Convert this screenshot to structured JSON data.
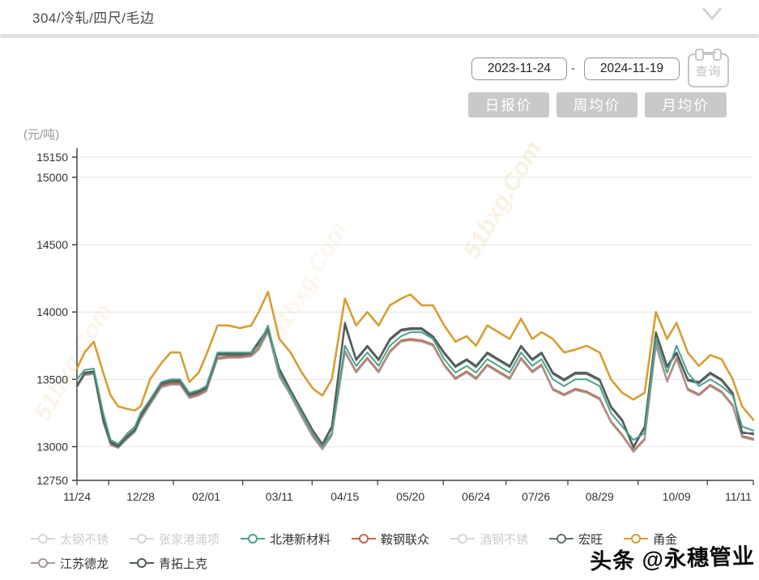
{
  "header": {
    "title": "304/冷轧/四尺/毛边"
  },
  "controls": {
    "date_start": "2023-11-24",
    "date_separator": "-",
    "date_end": "2024-11-19",
    "query_label": "查询",
    "buttons": [
      {
        "label": "日报价"
      },
      {
        "label": "周均价"
      },
      {
        "label": "月均价"
      }
    ]
  },
  "watermarks": {
    "toutiao": "头条 @永穗管业",
    "site": "51bxg.Com"
  },
  "chart_data": {
    "type": "line",
    "unit_label": "(元/吨)",
    "ylim": [
      12750,
      15150
    ],
    "y_ticks": [
      12750,
      13000,
      13500,
      14000,
      14500,
      15000,
      15150
    ],
    "x_range": [
      0,
      361
    ],
    "x_ticks": [
      {
        "label": "11/24",
        "day": 0
      },
      {
        "label": "12/28",
        "day": 34
      },
      {
        "label": "02/01",
        "day": 69
      },
      {
        "label": "03/11",
        "day": 108
      },
      {
        "label": "04/15",
        "day": 143
      },
      {
        "label": "05/20",
        "day": 178
      },
      {
        "label": "06/24",
        "day": 213
      },
      {
        "label": "07/26",
        "day": 245
      },
      {
        "label": "08/29",
        "day": 279
      },
      {
        "label": "10/09",
        "day": 320
      },
      {
        "label": "11/11",
        "day": 353
      }
    ],
    "grid": true,
    "legend_position": "bottom",
    "x_days": [
      0,
      4,
      9,
      14,
      18,
      22,
      27,
      31,
      34,
      39,
      45,
      50,
      55,
      60,
      65,
      69,
      75,
      81,
      87,
      93,
      97,
      102,
      108,
      114,
      120,
      126,
      131,
      136,
      143,
      149,
      155,
      161,
      167,
      173,
      178,
      184,
      190,
      196,
      202,
      208,
      213,
      219,
      225,
      231,
      237,
      243,
      248,
      254,
      260,
      266,
      272,
      279,
      285,
      291,
      297,
      303,
      309,
      315,
      320,
      326,
      332,
      338,
      344,
      350,
      355,
      361
    ],
    "series": [
      {
        "name": "太钢不锈",
        "color": "#d6d6d6",
        "active": false
      },
      {
        "name": "张家港浦项",
        "color": "#d6d6d6",
        "active": false
      },
      {
        "name": "北港新材料",
        "color": "#4ba18d",
        "active": true,
        "width": 2,
        "values": [
          13500,
          13570,
          13580,
          13250,
          13050,
          13020,
          13100,
          13150,
          13250,
          13350,
          13480,
          13500,
          13500,
          13400,
          13420,
          13450,
          13700,
          13700,
          13700,
          13700,
          13750,
          13900,
          13550,
          13400,
          13250,
          13100,
          13000,
          13100,
          13750,
          13600,
          13700,
          13600,
          13750,
          13820,
          13850,
          13850,
          13800,
          13650,
          13550,
          13600,
          13550,
          13650,
          13600,
          13550,
          13700,
          13600,
          13650,
          13500,
          13450,
          13500,
          13500,
          13450,
          13250,
          13150,
          13050,
          13100,
          13800,
          13550,
          13750,
          13550,
          13450,
          13500,
          13450,
          13380,
          13150,
          13120
        ]
      },
      {
        "name": "鞍钢联众",
        "color": "#c2674a",
        "active": true,
        "width": 2,
        "values": [
          13450,
          13540,
          13550,
          13190,
          13020,
          13000,
          13070,
          13120,
          13210,
          13320,
          13450,
          13470,
          13470,
          13370,
          13390,
          13420,
          13660,
          13670,
          13670,
          13680,
          13730,
          13860,
          13530,
          13390,
          13230,
          13080,
          12990,
          13090,
          13710,
          13560,
          13660,
          13560,
          13710,
          13790,
          13800,
          13790,
          13760,
          13610,
          13510,
          13560,
          13510,
          13610,
          13560,
          13510,
          13660,
          13560,
          13610,
          13430,
          13390,
          13430,
          13410,
          13360,
          13190,
          13090,
          12970,
          13060,
          13760,
          13490,
          13660,
          13430,
          13390,
          13460,
          13410,
          13310,
          13080,
          13060
        ]
      },
      {
        "name": "酒钢不锈",
        "color": "#d6d6d6",
        "active": false
      },
      {
        "name": "宏旺",
        "color": "#64716b",
        "active": true,
        "width": 2,
        "values": [
          13460,
          13540,
          13550,
          13210,
          13040,
          13010,
          13070,
          13120,
          13220,
          13330,
          13460,
          13480,
          13480,
          13380,
          13400,
          13430,
          13680,
          13680,
          13680,
          13690,
          13760,
          13870,
          13570,
          13410,
          13260,
          13110,
          13010,
          13140,
          13900,
          13640,
          13740,
          13640,
          13790,
          13860,
          13870,
          13870,
          13810,
          13690,
          13590,
          13640,
          13590,
          13690,
          13640,
          13590,
          13740,
          13640,
          13690,
          13540,
          13490,
          13540,
          13540,
          13490,
          13290,
          13190,
          12990,
          13140,
          13840,
          13590,
          13690,
          13490,
          13470,
          13540,
          13490,
          13390,
          13110,
          13090
        ]
      },
      {
        "name": "甬金",
        "color": "#d79e33",
        "active": true,
        "width": 2.6,
        "values": [
          13580,
          13700,
          13780,
          13550,
          13380,
          13300,
          13280,
          13270,
          13300,
          13500,
          13620,
          13700,
          13700,
          13480,
          13550,
          13680,
          13900,
          13900,
          13880,
          13900,
          14000,
          14150,
          13800,
          13700,
          13550,
          13430,
          13380,
          13500,
          14100,
          13900,
          14000,
          13900,
          14050,
          14100,
          14130,
          14050,
          14050,
          13900,
          13780,
          13820,
          13750,
          13900,
          13850,
          13800,
          13950,
          13800,
          13850,
          13800,
          13700,
          13720,
          13750,
          13700,
          13500,
          13400,
          13350,
          13400,
          14000,
          13800,
          13920,
          13700,
          13600,
          13680,
          13650,
          13500,
          13300,
          13200
        ]
      },
      {
        "name": "江苏德龙",
        "color": "#a59897",
        "active": true,
        "width": 2,
        "values": [
          13440,
          13530,
          13540,
          13180,
          13010,
          12990,
          13060,
          13110,
          13200,
          13310,
          13440,
          13460,
          13460,
          13360,
          13380,
          13410,
          13650,
          13660,
          13660,
          13670,
          13720,
          13850,
          13520,
          13380,
          13220,
          13070,
          12980,
          13080,
          13700,
          13550,
          13650,
          13550,
          13700,
          13780,
          13790,
          13780,
          13750,
          13600,
          13500,
          13550,
          13500,
          13600,
          13550,
          13500,
          13650,
          13550,
          13600,
          13420,
          13380,
          13420,
          13400,
          13350,
          13180,
          13080,
          12960,
          13050,
          13750,
          13480,
          13650,
          13420,
          13380,
          13450,
          13400,
          13300,
          13070,
          13050
        ]
      },
      {
        "name": "青拓上克",
        "color": "#515a5c",
        "active": true,
        "width": 2.2,
        "values": [
          13450,
          13550,
          13560,
          13200,
          13030,
          13000,
          13080,
          13130,
          13230,
          13340,
          13470,
          13490,
          13490,
          13390,
          13410,
          13440,
          13690,
          13690,
          13690,
          13700,
          13780,
          13880,
          13580,
          13420,
          13270,
          13120,
          13020,
          13150,
          13920,
          13650,
          13750,
          13650,
          13800,
          13870,
          13880,
          13880,
          13820,
          13700,
          13600,
          13650,
          13600,
          13700,
          13650,
          13600,
          13750,
          13650,
          13700,
          13550,
          13500,
          13550,
          13550,
          13500,
          13300,
          13200,
          13000,
          13150,
          13850,
          13600,
          13700,
          13500,
          13480,
          13550,
          13500,
          13400,
          13100,
          13100
        ]
      }
    ],
    "draw_order": [
      "鞍钢联众",
      "江苏德龙",
      "宏旺",
      "青拓上克",
      "北港新材料",
      "甬金"
    ],
    "legend_rows": [
      [
        0,
        1,
        2,
        3,
        4,
        5,
        6
      ],
      [
        7,
        8
      ]
    ]
  }
}
